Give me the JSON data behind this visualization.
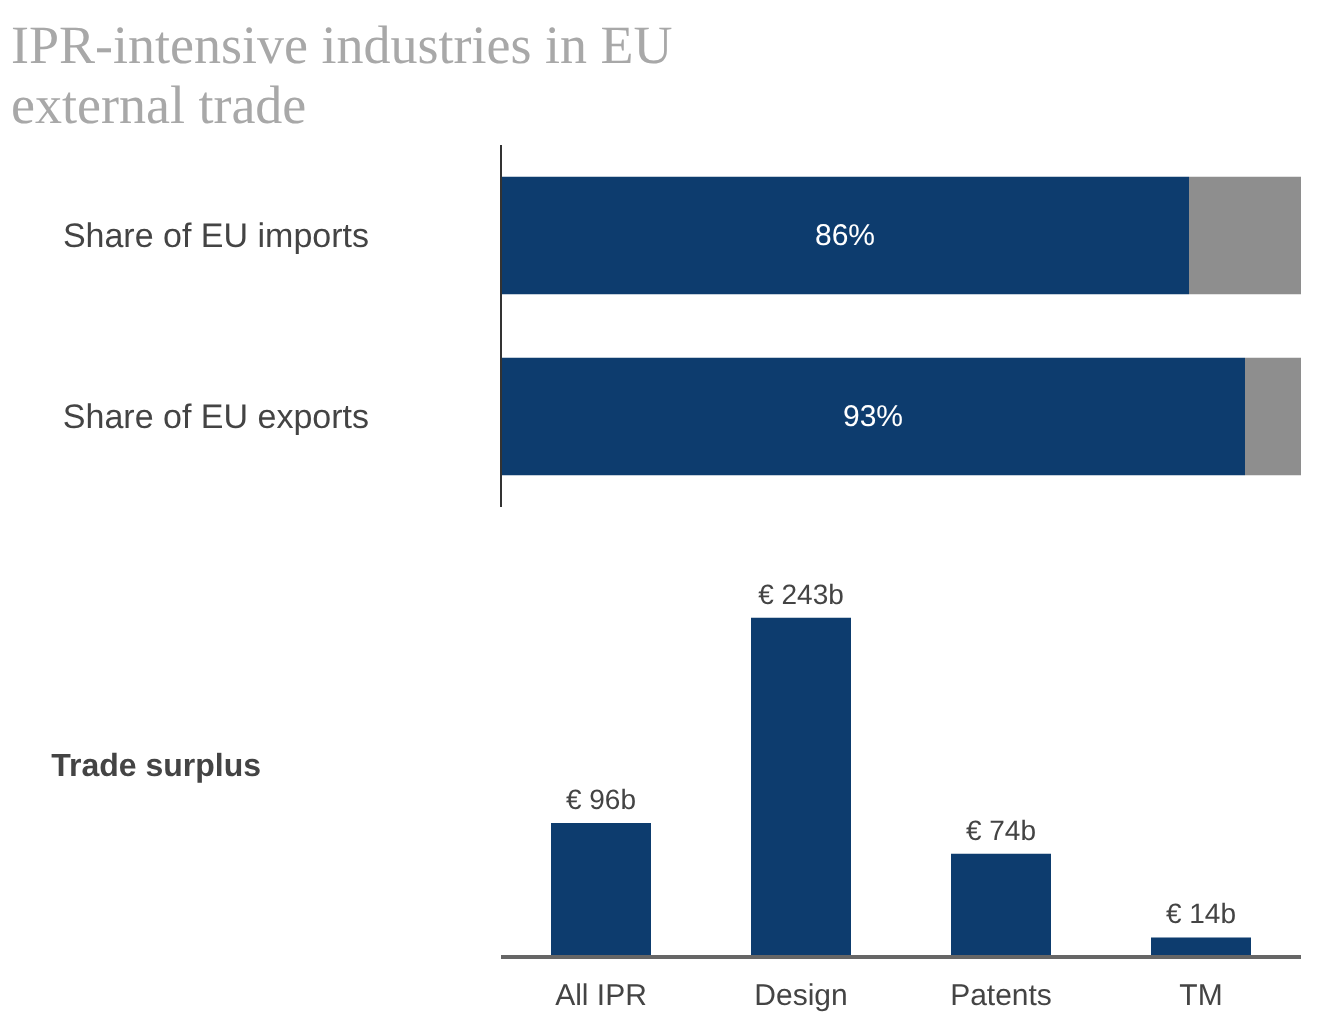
{
  "chart_data": [
    {
      "type": "bar",
      "title": "IPR-intensive industries in EU external trade",
      "orientation": "horizontal",
      "stacked": true,
      "categories": [
        "Share of EU imports",
        "Share of EU exports"
      ],
      "series": [
        {
          "color": "#0d3c6e",
          "values": [
            86,
            93
          ],
          "value_labels": [
            "86%",
            "93%"
          ]
        },
        {
          "color": "#8e8e8e",
          "values": [
            14,
            7
          ]
        }
      ],
      "xlim": [
        0,
        100
      ],
      "tick_labels": "y",
      "grid": false
    },
    {
      "type": "bar",
      "ylabel": "Trade surplus",
      "categories": [
        "All IPR",
        "Design",
        "Patents",
        "TM"
      ],
      "values": [
        96,
        243,
        74,
        14
      ],
      "color": "#0d3c6e",
      "value_labels": [
        "€ 96b",
        "€ 243b",
        "€ 74b",
        "€ 14b"
      ],
      "tick_labels": "x",
      "grid": false
    }
  ]
}
